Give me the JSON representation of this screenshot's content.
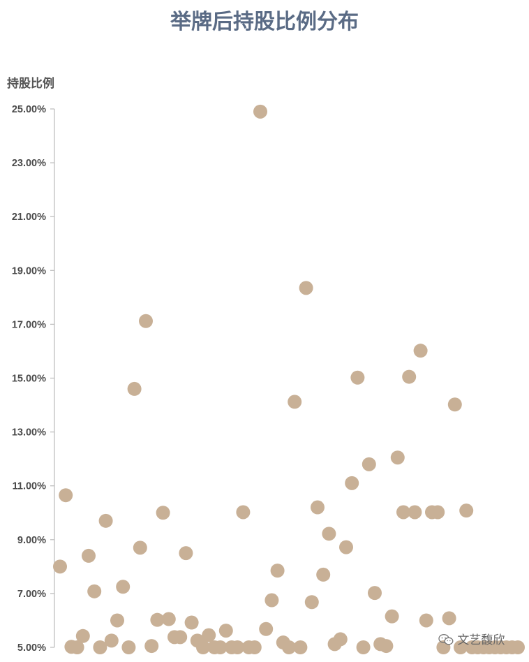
{
  "watermark": {
    "icon": "wechat-icon",
    "text": "文艺馥欣"
  },
  "chart_data": {
    "type": "scatter",
    "title": "举牌后持股比例分布",
    "ylabel": "持股比例",
    "xlabel": "",
    "ylim": [
      5,
      25
    ],
    "y_ticks": [
      "5.00%",
      "7.00%",
      "9.00%",
      "11.00%",
      "13.00%",
      "15.00%",
      "17.00%",
      "19.00%",
      "21.00%",
      "23.00%",
      "25.00%"
    ],
    "grid": false,
    "legend": "none",
    "marker_color": "#c8b096",
    "series": [
      {
        "x": [
          1,
          2,
          3,
          4,
          5,
          6,
          7,
          8,
          9,
          10,
          11,
          12,
          13,
          14,
          15,
          16,
          17,
          18,
          19,
          20,
          21,
          22,
          23,
          24,
          25,
          26,
          27,
          28,
          29,
          30,
          31,
          32,
          33,
          34,
          35,
          36,
          37,
          38,
          39,
          40,
          41,
          42,
          43,
          44,
          45,
          46,
          47,
          48,
          49,
          50,
          51,
          52,
          53,
          54,
          55,
          56,
          57,
          58,
          59,
          60,
          61,
          62,
          63,
          64,
          65,
          66,
          67,
          68,
          69,
          70,
          71,
          72,
          73,
          74,
          75,
          76,
          77,
          78,
          79,
          80,
          81
        ],
        "y": [
          8.0,
          10.65,
          5.02,
          5.0,
          5.42,
          8.4,
          7.08,
          5.0,
          9.7,
          5.25,
          6.0,
          7.25,
          5.0,
          14.6,
          8.7,
          17.12,
          5.05,
          6.02,
          10.0,
          6.05,
          5.38,
          5.38,
          8.5,
          5.92,
          5.25,
          5.0,
          5.45,
          5.0,
          5.0,
          5.62,
          5.0,
          5.0,
          10.02,
          5.0,
          5.0,
          24.9,
          5.68,
          6.75,
          7.85,
          5.18,
          5.0,
          14.12,
          5.0,
          18.35,
          6.68,
          10.2,
          7.7,
          9.22,
          5.12,
          5.3,
          8.72,
          11.1,
          15.02,
          5.0,
          11.8,
          7.02,
          5.12,
          5.05,
          6.15,
          12.05,
          10.02,
          15.05,
          10.02,
          16.02,
          6.0,
          10.02,
          10.02,
          5.0,
          6.08,
          14.02,
          5.0,
          10.08,
          5.0,
          5.0,
          5.0,
          5.0,
          5.0,
          5.0,
          5.0,
          5.0,
          5.0
        ]
      }
    ]
  }
}
